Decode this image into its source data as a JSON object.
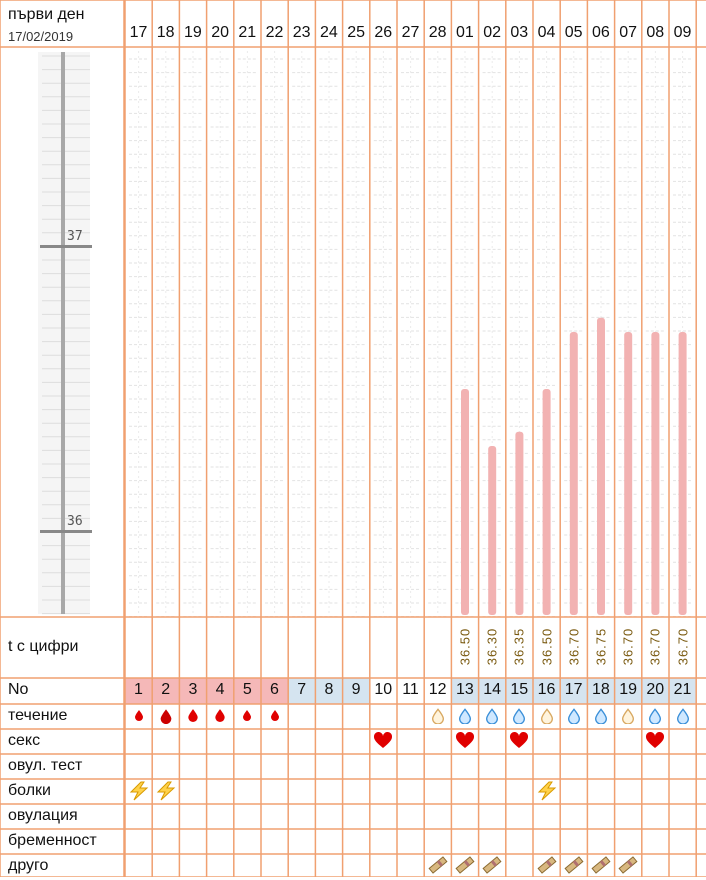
{
  "header": {
    "title": "първи ден",
    "date": "17/02/2019"
  },
  "days": [
    "17",
    "18",
    "19",
    "20",
    "21",
    "22",
    "23",
    "24",
    "25",
    "26",
    "27",
    "28",
    "01",
    "02",
    "03",
    "04",
    "05",
    "06",
    "07",
    "08",
    "09"
  ],
  "row_labels": {
    "temp_digits": "t с цифри",
    "number": "No",
    "flow": "течение",
    "sex": "секс",
    "ovulation_test": "овул. тест",
    "pain": "болки",
    "ovulation": "овулация",
    "pregnancy": "бременност",
    "other": "друго"
  },
  "cycle_numbers": [
    "1",
    "2",
    "3",
    "4",
    "5",
    "6",
    "7",
    "8",
    "9",
    "10",
    "11",
    "12",
    "13",
    "14",
    "15",
    "16",
    "17",
    "18",
    "19",
    "20",
    "21"
  ],
  "cycle_number_colors": {
    "menstruation": "#f5b8b8",
    "normal": "#d5e4f0",
    "none": "#ffffff"
  },
  "cycle_number_kind": [
    "menstruation",
    "menstruation",
    "menstruation",
    "menstruation",
    "menstruation",
    "menstruation",
    "normal",
    "normal",
    "normal",
    "none",
    "none",
    "none",
    "normal",
    "normal",
    "normal",
    "normal",
    "normal",
    "normal",
    "normal",
    "normal",
    "normal"
  ],
  "colors": {
    "grid": "#f0a070",
    "bar": "#f2b2b2",
    "axis": "#a8a8a8"
  },
  "flow": [
    "blood-drop-small",
    "blood-drop-large",
    "blood-drop-medium",
    "blood-drop-medium",
    "blood-drop-small",
    "blood-drop-small",
    null,
    null,
    null,
    null,
    null,
    "drop-beige",
    "drop-blue",
    "drop-blue",
    "drop-blue",
    "drop-beige",
    "drop-blue",
    "drop-blue",
    "drop-beige",
    "drop-blue",
    "drop-blue"
  ],
  "sex": [
    null,
    null,
    null,
    null,
    null,
    null,
    null,
    null,
    null,
    "heart",
    null,
    null,
    "heart",
    null,
    "heart",
    null,
    null,
    null,
    null,
    "heart",
    null
  ],
  "pain": [
    "lightning",
    "lightning",
    null,
    null,
    null,
    null,
    null,
    null,
    null,
    null,
    null,
    null,
    null,
    null,
    null,
    "lightning",
    null,
    null,
    null,
    null,
    null
  ],
  "other": [
    null,
    null,
    null,
    null,
    null,
    null,
    null,
    null,
    null,
    null,
    null,
    "test-strip",
    "test-strip",
    "test-strip",
    null,
    "test-strip",
    "test-strip",
    "test-strip",
    "test-strip",
    null,
    null
  ],
  "chart_data": {
    "type": "bar",
    "categories": [
      "17",
      "18",
      "19",
      "20",
      "21",
      "22",
      "23",
      "24",
      "25",
      "26",
      "27",
      "28",
      "01",
      "02",
      "03",
      "04",
      "05",
      "06",
      "07",
      "08",
      "09"
    ],
    "values": [
      null,
      null,
      null,
      null,
      null,
      null,
      null,
      null,
      null,
      null,
      null,
      null,
      36.5,
      36.3,
      36.35,
      36.5,
      36.7,
      36.75,
      36.7,
      36.7,
      36.7
    ],
    "value_labels": [
      "",
      "",
      "",
      "",
      "",
      "",
      "",
      "",
      "",
      "",
      "",
      "",
      "36.50",
      "36.30",
      "36.35",
      "36.50",
      "36.70",
      "36.75",
      "36.70",
      "36.70",
      "36.70"
    ],
    "ylim": [
      35.7,
      37.7
    ],
    "yticks": [
      "37",
      "36"
    ],
    "grid": true
  }
}
